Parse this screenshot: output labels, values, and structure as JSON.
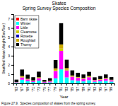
{
  "chart_data": {
    "type": "bar",
    "stacked": true,
    "title": "Skates\nSpring Survey Species Composition",
    "xlabel": "Year",
    "ylabel": "Stratified Mean Weight(Ton/Tow)",
    "caption": "Figure 27.9.  Species composition of skates from the spring survey.",
    "categories": [
      "'63",
      "'67",
      "'69",
      "'71",
      "'73",
      "'75",
      "'77",
      "'79",
      "'81",
      "'83",
      "'85",
      "'87",
      "'89",
      "'91",
      "'93",
      "'95",
      "'97",
      "'99"
    ],
    "series": [
      {
        "name": "Barn skate",
        "color": "#ff0000",
        "values": [
          0.0,
          0.0,
          0.0,
          0.0,
          0.0,
          0.0,
          0.0,
          0.0,
          0.02,
          0.0,
          0.0,
          0.0,
          0.0,
          0.0,
          0.0,
          0.0,
          0.0,
          0.02
        ]
      },
      {
        "name": "Winter",
        "color": "#00ffff",
        "values": [
          0.08,
          0.4,
          0.25,
          0.15,
          0.3,
          0.08,
          0.12,
          0.55,
          1.5,
          0.65,
          0.35,
          0.28,
          0.22,
          0.35,
          0.18,
          0.22,
          0.28,
          0.18
        ]
      },
      {
        "name": "Little",
        "color": "#ff00ff",
        "values": [
          0.05,
          0.25,
          0.18,
          0.1,
          0.25,
          0.08,
          0.1,
          0.8,
          2.0,
          0.75,
          0.38,
          0.32,
          0.28,
          0.32,
          0.14,
          0.18,
          0.22,
          0.14
        ]
      },
      {
        "name": "Clearnose",
        "color": "#cccc00",
        "values": [
          0.01,
          0.05,
          0.02,
          0.02,
          0.04,
          0.01,
          0.02,
          0.1,
          0.25,
          0.08,
          0.04,
          0.03,
          0.03,
          0.04,
          0.02,
          0.02,
          0.03,
          0.02
        ]
      },
      {
        "name": "Rosette",
        "color": "#0000bb",
        "values": [
          0.0,
          0.0,
          0.0,
          0.0,
          0.0,
          0.0,
          0.0,
          0.0,
          0.0,
          0.0,
          0.0,
          0.0,
          0.0,
          0.0,
          0.0,
          0.0,
          0.0,
          0.0
        ]
      },
      {
        "name": "Roughtail",
        "color": "#ccaa00",
        "values": [
          0.02,
          0.1,
          0.05,
          0.05,
          0.08,
          0.02,
          0.04,
          0.18,
          0.45,
          0.18,
          0.09,
          0.07,
          0.06,
          0.09,
          0.04,
          0.05,
          0.06,
          0.04
        ]
      },
      {
        "name": "Thorny",
        "color": "#000000",
        "values": [
          0.25,
          0.7,
          0.45,
          0.35,
          0.6,
          0.18,
          0.28,
          0.9,
          2.3,
          0.9,
          0.55,
          0.45,
          0.38,
          0.45,
          0.28,
          0.32,
          0.38,
          0.28
        ]
      }
    ],
    "ylim": [
      0,
      7.5
    ],
    "yticks": [
      0,
      1,
      2,
      3,
      4,
      5,
      6,
      7
    ],
    "grid": false,
    "legend": "upper left"
  }
}
